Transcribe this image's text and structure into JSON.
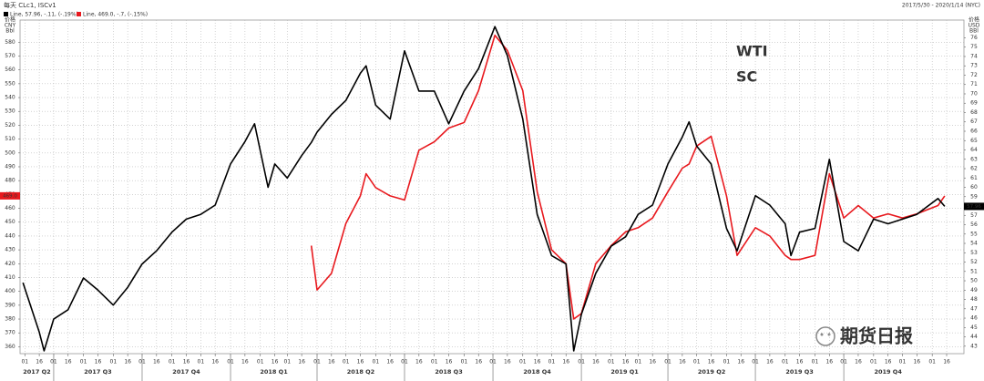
{
  "chart_data": {
    "type": "line",
    "header": "每天 CLc1, ISCv1",
    "legend_texts": [
      "Line, 57.96, -.11, (-.19%)",
      "Line, 469.0, -.7, (-.15%)"
    ],
    "date_range": "2017/5/30 - 2020/1/14 (NYC)",
    "y_axis_label": [
      "价格",
      "CNY",
      "Bbl"
    ],
    "y2_axis_label": [
      "价格",
      "USD",
      "BBl"
    ],
    "watermark": "期货日报",
    "x": [
      "2017-05-30",
      "2017-06-16",
      "2017-06-21",
      "2017-07-01",
      "2017-07-16",
      "2017-08-01",
      "2017-08-16",
      "2017-09-01",
      "2017-09-16",
      "2017-10-01",
      "2017-10-16",
      "2017-11-01",
      "2017-11-16",
      "2017-12-01",
      "2017-12-16",
      "2018-01-01",
      "2018-01-16",
      "2018-01-26",
      "2018-02-09",
      "2018-02-16",
      "2018-03-01",
      "2018-03-16",
      "2018-03-26",
      "2018-04-01",
      "2018-04-16",
      "2018-05-01",
      "2018-05-16",
      "2018-05-22",
      "2018-06-01",
      "2018-06-16",
      "2018-07-01",
      "2018-07-16",
      "2018-08-01",
      "2018-08-16",
      "2018-09-01",
      "2018-09-16",
      "2018-10-03",
      "2018-10-16",
      "2018-11-01",
      "2018-11-16",
      "2018-12-01",
      "2018-12-16",
      "2018-12-24",
      "2019-01-01",
      "2019-01-16",
      "2019-02-01",
      "2019-02-16",
      "2019-03-01",
      "2019-03-16",
      "2019-04-01",
      "2019-04-16",
      "2019-04-23",
      "2019-05-01",
      "2019-05-16",
      "2019-06-01",
      "2019-06-12",
      "2019-07-01",
      "2019-07-16",
      "2019-08-01",
      "2019-08-07",
      "2019-08-16",
      "2019-09-01",
      "2019-09-16",
      "2019-10-01",
      "2019-10-16",
      "2019-11-01",
      "2019-11-16",
      "2019-12-01",
      "2019-12-16",
      "2020-01-07",
      "2020-01-14"
    ],
    "series": [
      {
        "name": "WTI",
        "color": "#000000",
        "axis": "y2",
        "last_value_label": "57.96",
        "values": [
          49.8,
          44.5,
          42.5,
          45.9,
          46.9,
          50.3,
          49.0,
          47.4,
          49.3,
          51.8,
          53.2,
          55.2,
          56.6,
          57.1,
          58.1,
          62.5,
          64.9,
          66.8,
          60.0,
          62.5,
          61.0,
          63.4,
          64.8,
          65.9,
          67.8,
          69.3,
          72.2,
          73.0,
          68.8,
          67.3,
          74.6,
          70.3,
          70.3,
          66.8,
          70.3,
          72.7,
          77.2,
          74.1,
          67.3,
          57.1,
          52.7,
          51.8,
          42.5,
          46.4,
          50.8,
          53.7,
          54.7,
          57.1,
          58.1,
          62.5,
          65.4,
          67.0,
          64.4,
          62.5,
          55.6,
          53.2,
          59.1,
          58.1,
          56.1,
          52.7,
          55.2,
          55.6,
          63.0,
          54.2,
          53.2,
          56.6,
          56.1,
          56.6,
          57.1,
          58.8,
          57.96
        ]
      },
      {
        "name": "SC",
        "color": "#e8191e",
        "axis": "y",
        "last_value_label": "469.0",
        "values": [
          null,
          null,
          null,
          null,
          null,
          null,
          null,
          null,
          null,
          null,
          null,
          null,
          null,
          null,
          null,
          null,
          null,
          null,
          null,
          null,
          null,
          null,
          433,
          401,
          413,
          449,
          469,
          485,
          475,
          469,
          466,
          502,
          508,
          518,
          522,
          545,
          585,
          574,
          545,
          472,
          430,
          420,
          380,
          384,
          420,
          433,
          443,
          446,
          453,
          472,
          489,
          492,
          505,
          512,
          469,
          426,
          446,
          440,
          426,
          423,
          423,
          426,
          485,
          453,
          462,
          453,
          456,
          453,
          456,
          462,
          469
        ]
      }
    ],
    "xlim": [
      "2017-05-27",
      "2020-02-03"
    ],
    "ylim": [
      355,
      596
    ],
    "y2lim": [
      42.2,
      77.9
    ],
    "yticks": [
      360,
      370,
      380,
      390,
      400,
      410,
      420,
      430,
      440,
      450,
      460,
      470,
      480,
      490,
      500,
      510,
      520,
      530,
      540,
      550,
      560,
      570,
      580
    ],
    "y2ticks": [
      43,
      44,
      45,
      46,
      47,
      48,
      49,
      50,
      51,
      52,
      53,
      54,
      55,
      56,
      57,
      58,
      59,
      60,
      61,
      62,
      63,
      64,
      65,
      66,
      67,
      68,
      69,
      70,
      71,
      72,
      73,
      74,
      75,
      76
    ],
    "xticks": [
      {
        "value": "2017-06-01",
        "label": "01"
      },
      {
        "value": "2017-06-16",
        "label": "16"
      },
      {
        "value": "2017-07-01",
        "label": "01"
      },
      {
        "value": "2017-07-16",
        "label": "16"
      },
      {
        "value": "2017-08-01",
        "label": "01"
      },
      {
        "value": "2017-08-16",
        "label": "16"
      },
      {
        "value": "2017-09-01",
        "label": "01"
      },
      {
        "value": "2017-09-16",
        "label": "16"
      },
      {
        "value": "2017-10-01",
        "label": "01"
      },
      {
        "value": "2017-10-16",
        "label": "16"
      },
      {
        "value": "2017-11-01",
        "label": "01"
      },
      {
        "value": "2017-11-16",
        "label": "16"
      },
      {
        "value": "2017-12-01",
        "label": "01"
      },
      {
        "value": "2017-12-16",
        "label": "16"
      },
      {
        "value": "2018-01-01",
        "label": "01"
      },
      {
        "value": "2018-01-16",
        "label": "16"
      },
      {
        "value": "2018-02-01",
        "label": "01"
      },
      {
        "value": "2018-02-16",
        "label": "16"
      },
      {
        "value": "2018-03-01",
        "label": "01"
      },
      {
        "value": "2018-03-16",
        "label": "16"
      },
      {
        "value": "2018-04-01",
        "label": "01"
      },
      {
        "value": "2018-04-16",
        "label": "16"
      },
      {
        "value": "2018-05-01",
        "label": "01"
      },
      {
        "value": "2018-05-16",
        "label": "16"
      },
      {
        "value": "2018-06-01",
        "label": "01"
      },
      {
        "value": "2018-06-16",
        "label": "16"
      },
      {
        "value": "2018-07-01",
        "label": "01"
      },
      {
        "value": "2018-07-16",
        "label": "16"
      },
      {
        "value": "2018-08-01",
        "label": "01"
      },
      {
        "value": "2018-08-16",
        "label": "16"
      },
      {
        "value": "2018-09-01",
        "label": "01"
      },
      {
        "value": "2018-09-16",
        "label": "16"
      },
      {
        "value": "2018-10-01",
        "label": "01"
      },
      {
        "value": "2018-10-16",
        "label": "16"
      },
      {
        "value": "2018-11-01",
        "label": "01"
      },
      {
        "value": "2018-11-16",
        "label": "16"
      },
      {
        "value": "2018-12-01",
        "label": "01"
      },
      {
        "value": "2018-12-16",
        "label": "16"
      },
      {
        "value": "2019-01-01",
        "label": "01"
      },
      {
        "value": "2019-01-16",
        "label": "16"
      },
      {
        "value": "2019-02-01",
        "label": "01"
      },
      {
        "value": "2019-02-16",
        "label": "16"
      },
      {
        "value": "2019-03-01",
        "label": "01"
      },
      {
        "value": "2019-03-16",
        "label": "16"
      },
      {
        "value": "2019-04-01",
        "label": "01"
      },
      {
        "value": "2019-04-16",
        "label": "16"
      },
      {
        "value": "2019-05-01",
        "label": "01"
      },
      {
        "value": "2019-05-16",
        "label": "16"
      },
      {
        "value": "2019-06-01",
        "label": "01"
      },
      {
        "value": "2019-06-16",
        "label": "16"
      },
      {
        "value": "2019-07-01",
        "label": "01"
      },
      {
        "value": "2019-07-16",
        "label": "16"
      },
      {
        "value": "2019-08-01",
        "label": "01"
      },
      {
        "value": "2019-08-16",
        "label": "16"
      },
      {
        "value": "2019-09-01",
        "label": "01"
      },
      {
        "value": "2019-09-16",
        "label": "16"
      },
      {
        "value": "2019-10-01",
        "label": "01"
      },
      {
        "value": "2019-10-16",
        "label": "16"
      },
      {
        "value": "2019-11-01",
        "label": "01"
      },
      {
        "value": "2019-11-16",
        "label": "16"
      },
      {
        "value": "2019-12-01",
        "label": "01"
      },
      {
        "value": "2019-12-16",
        "label": "16"
      },
      {
        "value": "2020-01-01",
        "label": "01"
      },
      {
        "value": "2020-01-16",
        "label": "16"
      }
    ],
    "quarters": [
      {
        "value": "2017-04-01",
        "label": "2017 Q2"
      },
      {
        "value": "2017-07-01",
        "label": "2017 Q3"
      },
      {
        "value": "2017-10-01",
        "label": "2017 Q4"
      },
      {
        "value": "2018-01-01",
        "label": "2018 Q1"
      },
      {
        "value": "2018-04-01",
        "label": "2018 Q2"
      },
      {
        "value": "2018-07-01",
        "label": "2018 Q3"
      },
      {
        "value": "2018-10-01",
        "label": "2018 Q4"
      },
      {
        "value": "2019-01-01",
        "label": "2019 Q1"
      },
      {
        "value": "2019-04-01",
        "label": "2019 Q2"
      },
      {
        "value": "2019-07-01",
        "label": "2019 Q3"
      },
      {
        "value": "2019-10-01",
        "label": "2019 Q4"
      }
    ],
    "grid": true
  }
}
